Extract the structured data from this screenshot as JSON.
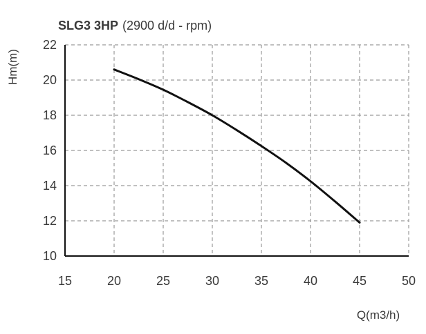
{
  "chart_data": {
    "type": "line",
    "title_bold": "SLG3 3HP",
    "title_rest": "(2900 d/d - rpm)",
    "xlabel": "Q(m3/h)",
    "ylabel": "Hm(m)",
    "xlim": [
      15,
      50
    ],
    "ylim": [
      10,
      22
    ],
    "x_ticks": [
      15,
      20,
      25,
      30,
      35,
      40,
      45,
      50
    ],
    "y_ticks": [
      10,
      12,
      14,
      16,
      18,
      20,
      22
    ],
    "grid": true,
    "series": [
      {
        "x": [
          20,
          22.5,
          25,
          27.5,
          30,
          32.5,
          35,
          37.5,
          40,
          42.5,
          45
        ],
        "y": [
          20.6,
          20.05,
          19.45,
          18.75,
          18.0,
          17.15,
          16.25,
          15.3,
          14.25,
          13.1,
          11.9
        ]
      }
    ],
    "colors": {
      "line": "#111111",
      "grid": "#9a9a9a",
      "axis": "#111111",
      "text": "#3a3a3a"
    }
  }
}
